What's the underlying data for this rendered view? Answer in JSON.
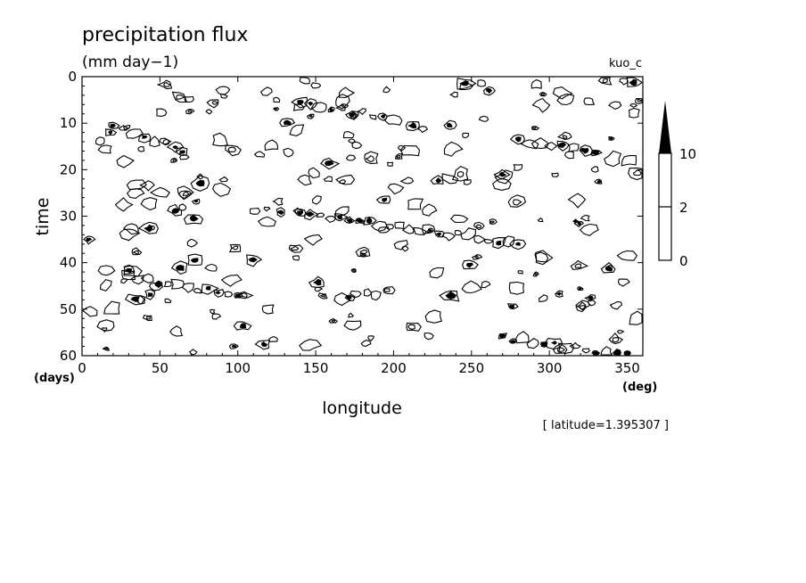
{
  "chart_data": {
    "type": "heatmap",
    "title": "precipitation flux",
    "subtitle": "(mm day−1)",
    "run_label": "kuo_c",
    "xlabel": "longitude",
    "ylabel": "time",
    "x_unit": "(deg)",
    "y_unit": "(days)",
    "xlim": [
      0,
      360
    ],
    "ylim": [
      0,
      60
    ],
    "y_inverted": true,
    "x_ticks": [
      0,
      50,
      100,
      150,
      200,
      250,
      300,
      350
    ],
    "y_ticks": [
      0,
      10,
      20,
      30,
      40,
      50,
      60
    ],
    "contour_levels": [
      2,
      10
    ],
    "colorbar": {
      "ticks": [
        "0",
        "2",
        "10"
      ]
    },
    "note": "[ latitude=1.395307 ]",
    "bands": [
      {
        "x0": 140,
        "x1": 280,
        "y0": 29,
        "y1": 36
      },
      {
        "x0": 30,
        "x1": 100,
        "y0": 43,
        "y1": 47
      },
      {
        "x0": 140,
        "x1": 200,
        "y0": 6,
        "y1": 9
      },
      {
        "x0": 280,
        "x1": 330,
        "y0": 14,
        "y1": 16
      },
      {
        "x0": 270,
        "x1": 350,
        "y0": 56,
        "y1": 60
      },
      {
        "x0": 20,
        "x1": 60,
        "y0": 11,
        "y1": 15
      }
    ]
  }
}
